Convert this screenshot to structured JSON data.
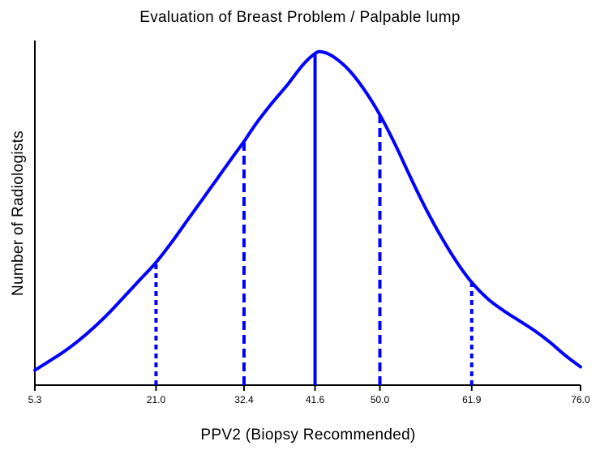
{
  "chart_data": {
    "type": "line",
    "title": "Evaluation of Breast Problem / Palpable lump",
    "xlabel": "PPV2 (Biopsy Recommended)",
    "ylabel": "Number of Radiologists",
    "xlim": [
      5.3,
      76.0
    ],
    "ylim": [
      0,
      1
    ],
    "yticks_shown": false,
    "grid": false,
    "series_color": "#0000ff",
    "tick_labels": [
      "5.3",
      "21.0",
      "32.4",
      "41.6",
      "50.0",
      "61.9",
      "76.0"
    ],
    "tick_values": [
      5.3,
      21.0,
      32.4,
      41.6,
      50.0,
      61.9,
      76.0
    ],
    "curve": {
      "x": [
        5.3,
        7,
        9,
        11,
        13,
        15,
        17,
        19,
        21,
        23,
        25,
        27,
        29,
        31,
        32.4,
        34,
        36,
        38,
        40,
        41.6,
        42.5,
        44,
        46,
        48,
        50,
        52,
        54,
        56,
        58,
        60,
        61.9,
        64,
        66,
        68,
        70,
        72,
        74,
        76.0
      ],
      "y": [
        0.045,
        0.07,
        0.1,
        0.135,
        0.175,
        0.22,
        0.27,
        0.32,
        0.37,
        0.43,
        0.495,
        0.56,
        0.625,
        0.69,
        0.735,
        0.79,
        0.85,
        0.905,
        0.965,
        1.0,
        1.005,
        0.99,
        0.95,
        0.89,
        0.815,
        0.725,
        0.625,
        0.53,
        0.445,
        0.37,
        0.31,
        0.26,
        0.225,
        0.195,
        0.165,
        0.13,
        0.09,
        0.055
      ]
    },
    "vertical_lines": [
      {
        "x": 21.0,
        "y": 0.37,
        "style": "dotted"
      },
      {
        "x": 32.4,
        "y": 0.735,
        "style": "dashed"
      },
      {
        "x": 41.6,
        "y": 1.0,
        "style": "solid"
      },
      {
        "x": 50.0,
        "y": 0.815,
        "style": "dashed"
      },
      {
        "x": 61.9,
        "y": 0.31,
        "style": "dotted"
      }
    ]
  }
}
